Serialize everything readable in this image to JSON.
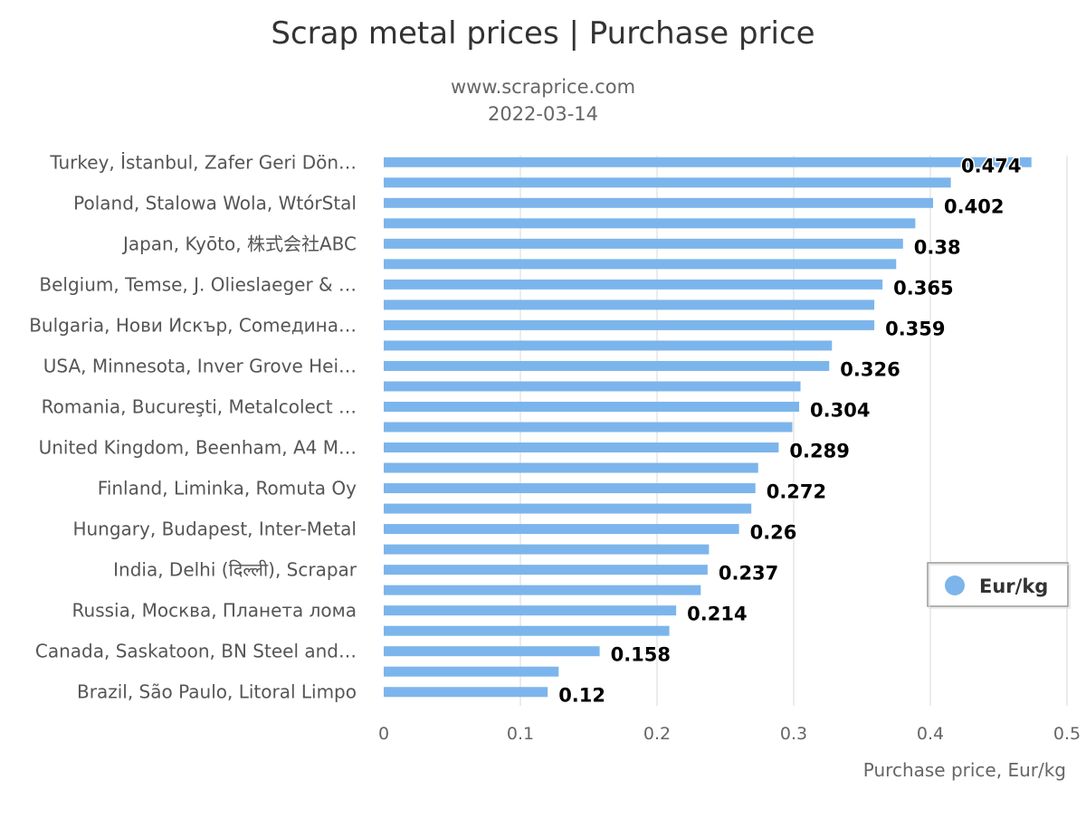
{
  "chart_data": {
    "type": "bar",
    "orientation": "horizontal",
    "title": "Scrap metal prices | Purchase price",
    "subtitle": [
      "www.scraprice.com",
      "2022-03-14"
    ],
    "xlabel": "Purchase price, Eur/kg",
    "xlim": [
      0,
      0.5
    ],
    "xticks": [
      "0",
      "0.1",
      "0.2",
      "0.3",
      "0.4",
      "0.5"
    ],
    "grid": true,
    "legend": {
      "placement": "right",
      "entries": [
        "Eur/kg"
      ]
    },
    "bar_color": "#7cb5ec",
    "categories": [
      "Turkey, İstanbul, Zafer Geri Dön…",
      "",
      "Poland, Stalowa Wola, WtórStal",
      "",
      "Japan, Kyōto, 株式会社ABC",
      "",
      "Belgium, Temse, J. Olieslaeger & …",
      "",
      "Bulgaria, Нови Искър, Comeдина…",
      "",
      "USA, Minnesota, Inver Grove Hei…",
      "",
      "Romania, Bucureşti, Metalcolect …",
      "",
      "United Kingdom, Beenham, A4 M…",
      "",
      "Finland, Liminka, Romuta Oy",
      "",
      "Hungary, Budapest, Inter-Metal",
      "",
      "India, Delhi (दिल्ली), Scrapar",
      "",
      "Russia, Москва, Планета лома",
      "",
      "Canada, Saskatoon, BN Steel and…",
      "",
      "Brazil, São Paulo, Litoral Limpo"
    ],
    "series": [
      {
        "name": "Eur/kg",
        "values": [
          0.474,
          0.415,
          0.402,
          0.389,
          0.38,
          0.375,
          0.365,
          0.359,
          0.359,
          0.328,
          0.326,
          0.305,
          0.304,
          0.299,
          0.289,
          0.274,
          0.272,
          0.269,
          0.26,
          0.238,
          0.237,
          0.232,
          0.214,
          0.209,
          0.158,
          0.128,
          0.12
        ],
        "data_labels": [
          "0.474",
          "",
          "0.402",
          "",
          "0.38",
          "",
          "0.365",
          "",
          "0.359",
          "",
          "0.326",
          "",
          "0.304",
          "",
          "0.289",
          "",
          "0.272",
          "",
          "0.26",
          "",
          "0.237",
          "",
          "0.214",
          "",
          "0.158",
          "",
          "0.12"
        ]
      }
    ]
  }
}
